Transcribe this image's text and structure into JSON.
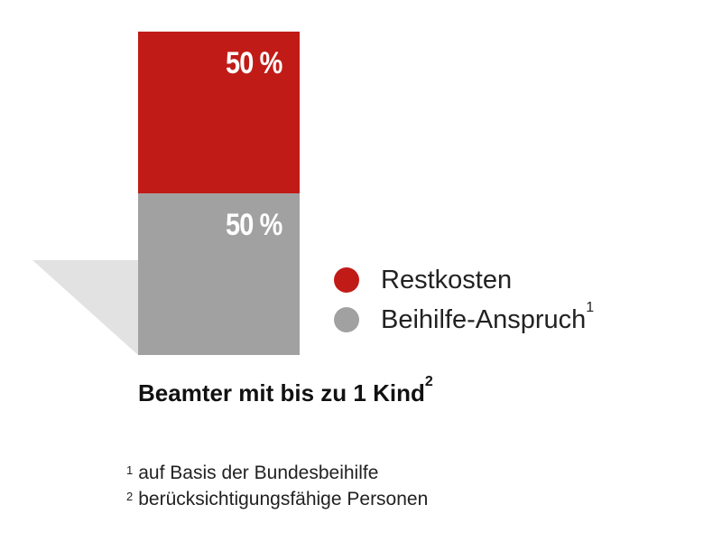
{
  "chart_data": {
    "type": "bar",
    "stacked": true,
    "categories": [
      "Beamter mit bis zu 1 Kind"
    ],
    "category_footnote": "2",
    "ylim": [
      0,
      100
    ],
    "series": [
      {
        "name": "Beihilfe-Anspruch",
        "footnote": "1",
        "values": [
          50
        ],
        "label": "50 %",
        "color": "#a1a1a1"
      },
      {
        "name": "Restkosten",
        "values": [
          50
        ],
        "label": "50 %",
        "color": "#c11b17"
      }
    ],
    "shadow_color": "#e2e2e2"
  },
  "footnotes": [
    {
      "marker": "1",
      "text": "auf Basis der Bundesbeihilfe"
    },
    {
      "marker": "2",
      "text": "berücksichtigungsfähige Personen"
    }
  ]
}
